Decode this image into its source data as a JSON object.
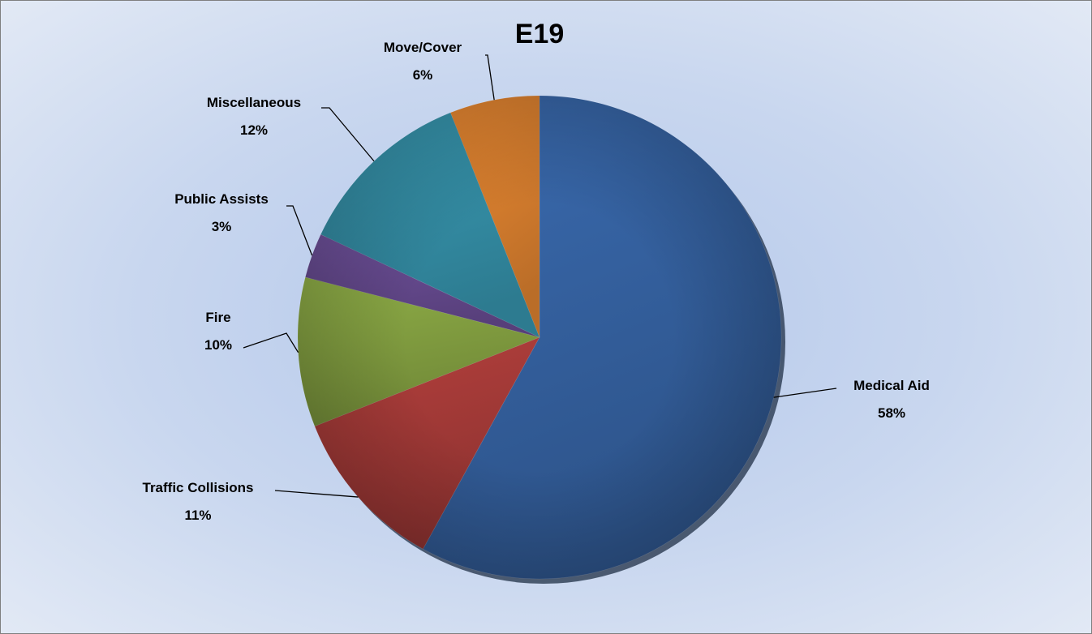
{
  "chart_data": {
    "type": "pie",
    "title": "E19",
    "slices": [
      {
        "name": "Medical Aid",
        "value": 58,
        "label": "58%",
        "color": "#3a6bb0"
      },
      {
        "name": "Traffic Collisions",
        "value": 11,
        "label": "11%",
        "color": "#b5403d"
      },
      {
        "name": "Fire",
        "value": 10,
        "label": "10%",
        "color": "#8fae47"
      },
      {
        "name": "Public Assists",
        "value": 3,
        "label": "3%",
        "color": "#6f519c"
      },
      {
        "name": "Miscellaneous",
        "value": 12,
        "label": "12%",
        "color": "#3a9eb8"
      },
      {
        "name": "Move/Cover",
        "value": 6,
        "label": "6%",
        "color": "#ef8c33"
      }
    ],
    "start_angle_deg": 0,
    "direction": "clockwise",
    "legend": "none",
    "data_labels": "outside with leader lines"
  }
}
